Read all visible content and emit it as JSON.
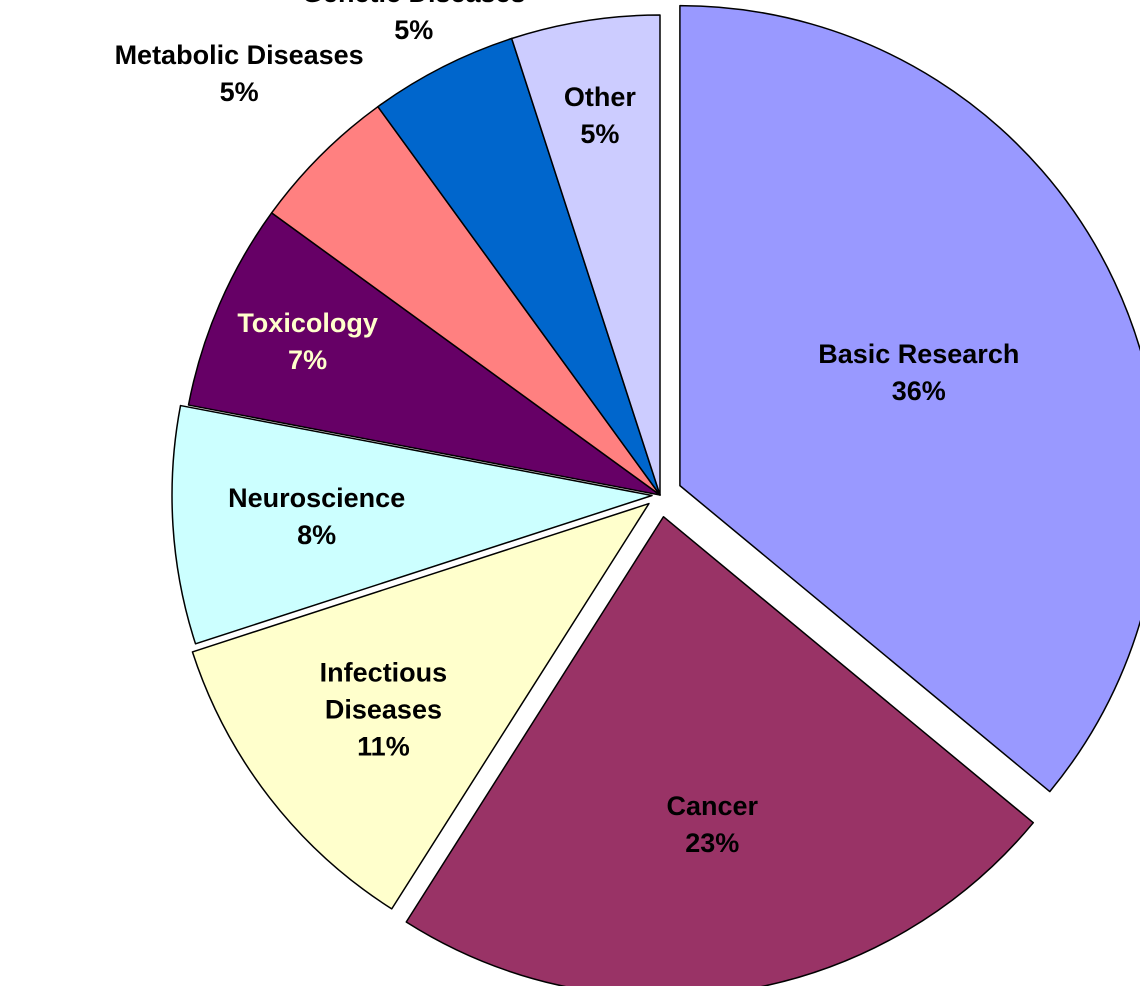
{
  "chart_data": {
    "type": "pie",
    "categories": [
      "Basic Research",
      "Cancer",
      "Infectious Diseases",
      "Neuroscience",
      "Toxicology",
      "Metabolic Diseases",
      "Genetic Diseases",
      "Other"
    ],
    "values": [
      36,
      23,
      11,
      8,
      7,
      5,
      5,
      5
    ],
    "value_labels": [
      "36%",
      "23%",
      "11%",
      "8%",
      "7%",
      "5%",
      "5%",
      "5%"
    ],
    "colors": [
      "#9999ff",
      "#993366",
      "#ffffcc",
      "#ccffff",
      "#660066",
      "#ff8080",
      "#0066cc",
      "#ccccff"
    ]
  }
}
